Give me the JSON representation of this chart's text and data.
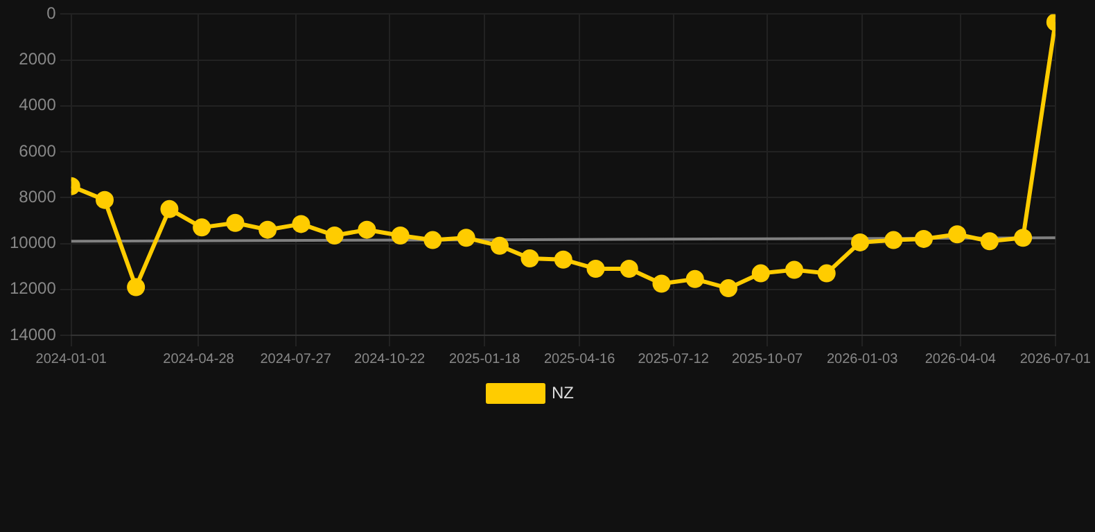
{
  "chart_data": {
    "type": "line",
    "x": [
      "2024-01-01",
      "2024-02-01",
      "2024-03-01",
      "2024-04-01",
      "2024-05-01",
      "2024-06-01",
      "2024-07-01",
      "2024-08-01",
      "2024-09-01",
      "2024-10-01",
      "2024-11-01",
      "2024-12-01",
      "2025-01-01",
      "2025-02-01",
      "2025-03-01",
      "2025-04-01",
      "2025-05-01",
      "2025-06-01",
      "2025-07-01",
      "2025-08-01",
      "2025-09-01",
      "2025-10-01",
      "2025-11-01",
      "2025-12-01",
      "2026-01-01",
      "2026-02-01",
      "2026-03-01",
      "2026-04-01",
      "2026-05-01",
      "2026-06-01",
      "2026-07-01"
    ],
    "series": [
      {
        "name": "NZ",
        "color": "#ffcc00",
        "marker": "circle",
        "values": [
          7500,
          8100,
          11900,
          8500,
          9300,
          9100,
          9400,
          9150,
          9650,
          9400,
          9650,
          9850,
          9750,
          10100,
          10650,
          10700,
          11100,
          11100,
          11750,
          11550,
          11950,
          11300,
          11150,
          11300,
          9950,
          9850,
          9800,
          9600,
          9900,
          9750,
          350
        ]
      },
      {
        "type": "line",
        "color": "#808080",
        "marker": "none",
        "x": [
          "2024-01-01",
          "2026-07-01"
        ],
        "values": [
          9900,
          9750
        ]
      }
    ],
    "xlim": [
      "2024-01-01",
      "2026-07-01"
    ],
    "xticks": [
      "2024-01-01",
      "2024-04-28",
      "2024-07-27",
      "2024-10-22",
      "2025-01-18",
      "2025-04-16",
      "2025-07-12",
      "2025-10-07",
      "2026-01-03",
      "2026-04-04",
      "2026-07-01"
    ],
    "ylim": [
      14000,
      0
    ],
    "yticks": [
      0,
      2000,
      4000,
      6000,
      8000,
      10000,
      12000,
      14000
    ],
    "grid": true,
    "legend": "bottom",
    "line_style": "solid"
  }
}
